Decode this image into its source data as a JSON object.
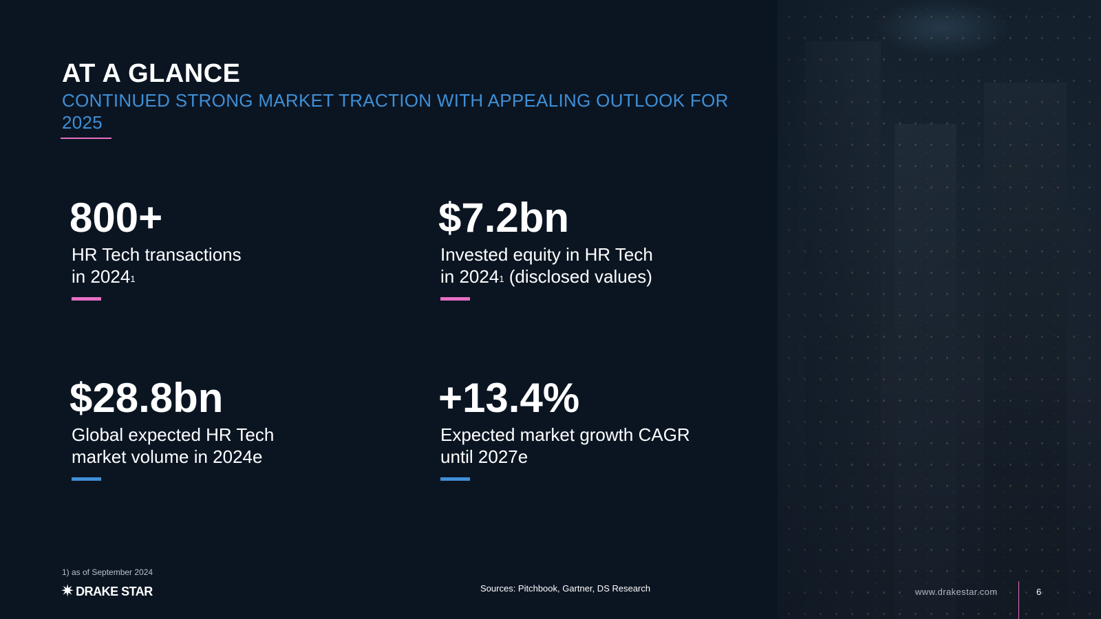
{
  "header": {
    "title": "AT A GLANCE",
    "subtitle": "CONTINUED STRONG MARKET TRACTION WITH APPEALING OUTLOOK FOR 2025"
  },
  "stats": [
    {
      "value": "800+",
      "line1": "HR Tech transactions",
      "line2": "in 2024",
      "footnote_mark": "1",
      "line2_suffix": ""
    },
    {
      "value": "$7.2bn",
      "line1": "Invested equity in HR Tech",
      "line2": "in 2024",
      "footnote_mark": "1",
      "line2_suffix": " (disclosed values)"
    },
    {
      "value": "$28.8bn",
      "line1": "Global expected HR Tech",
      "line2": "market volume in 2024e"
    },
    {
      "value": "+13.4%",
      "line1": "Expected market growth CAGR",
      "line2": "until 2027e"
    }
  ],
  "footer": {
    "footnote": "1) as of September 2024",
    "logo_text": "DRAKE STAR",
    "sources": "Sources: Pitchbook, Gartner, DS Research",
    "website": "www.drakestar.com",
    "page_number": "6"
  },
  "colors": {
    "background": "#0b1522",
    "accent_blue": "#3f8fd6",
    "accent_pink": "#e66fc3"
  }
}
